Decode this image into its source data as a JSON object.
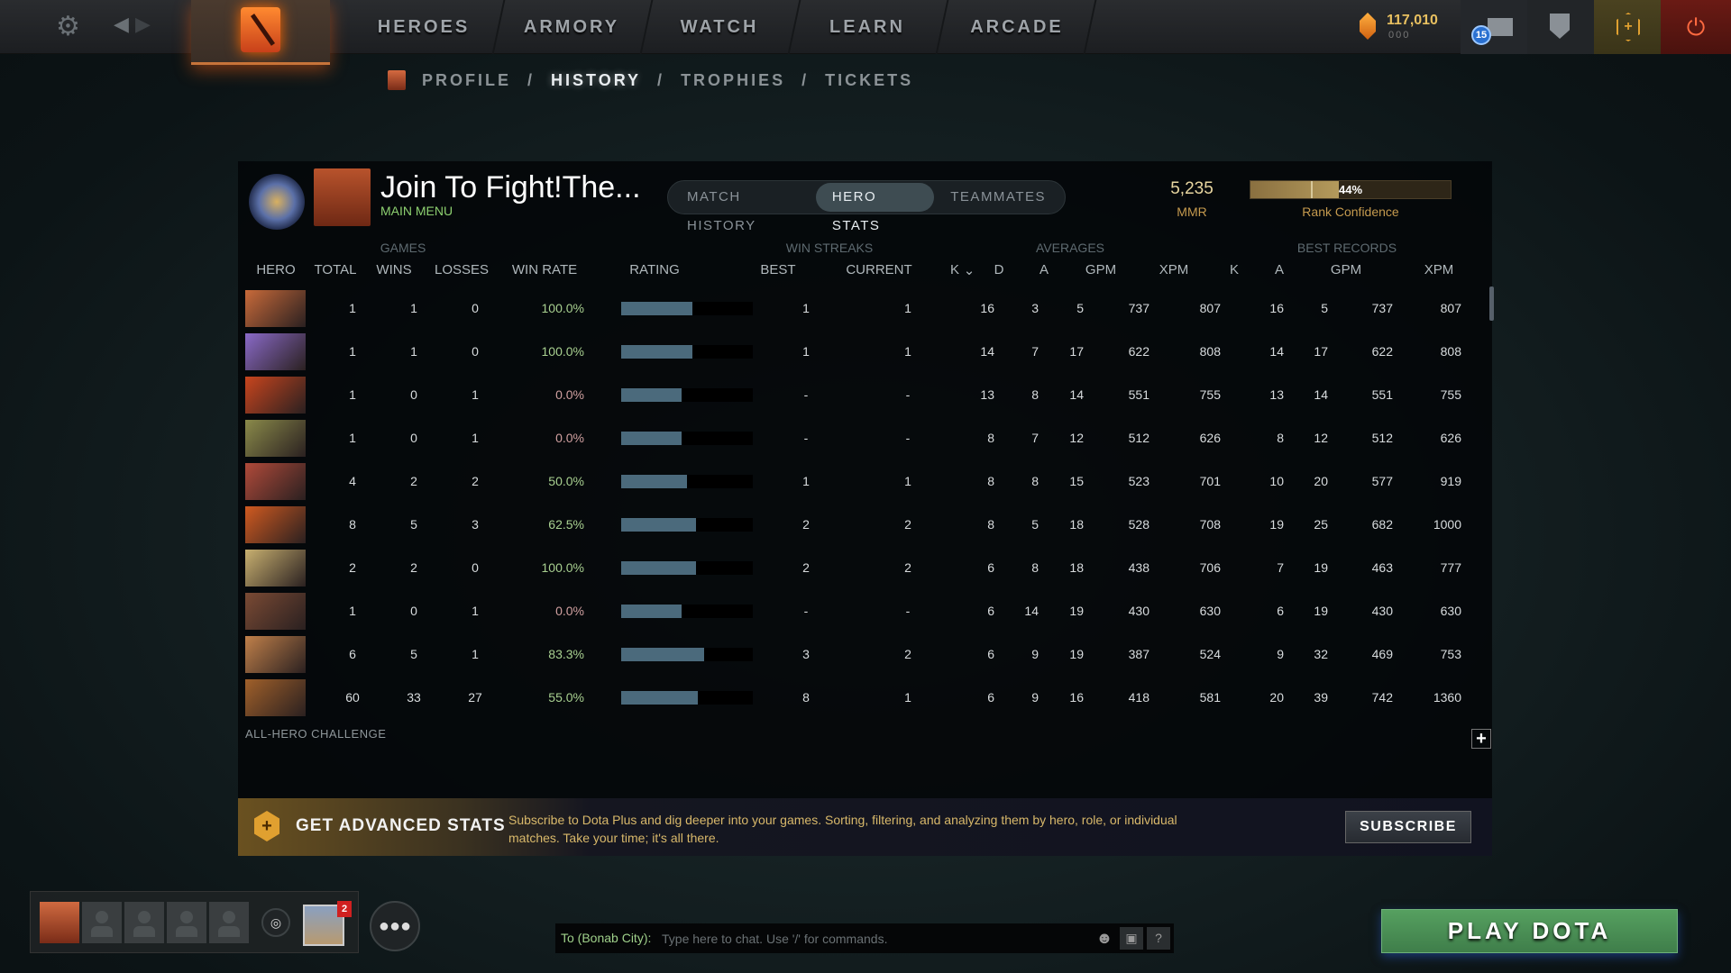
{
  "topnav": {
    "items": [
      "HEROES",
      "ARMORY",
      "WATCH",
      "LEARN",
      "ARCADE"
    ],
    "shards": "117,010",
    "shards_sub": "000",
    "notifications": "15"
  },
  "subnav": {
    "items": [
      "PROFILE",
      "HISTORY",
      "TROPHIES",
      "TICKETS"
    ],
    "separator": "/",
    "active": "HISTORY"
  },
  "profile": {
    "name": "Join To Fight!The...",
    "status": "MAIN MENU",
    "mmr": "5,235",
    "mmr_label": "MMR",
    "rank_confidence": "44%",
    "rank_confidence_value": 44,
    "rank_confidence_label": "Rank Confidence"
  },
  "tabs": [
    "MATCH HISTORY",
    "HERO STATS",
    "TEAMMATES"
  ],
  "active_tab": "HERO STATS",
  "groups": {
    "games": "GAMES",
    "win_streaks": "WIN STREAKS",
    "averages": "AVERAGES",
    "best_records": "BEST RECORDS"
  },
  "columns": [
    "HERO",
    "TOTAL",
    "WINS",
    "LOSSES",
    "WIN RATE",
    "RATING",
    "BEST",
    "CURRENT",
    "K",
    "D",
    "A",
    "GPM",
    "XPM",
    "K",
    "A",
    "GPM",
    "XPM"
  ],
  "sort_indicator": "⌄",
  "rows": [
    {
      "hero_color": "#c86a3a",
      "total": "1",
      "wins": "1",
      "losses": "0",
      "win_rate": "100.0%",
      "rating": 54,
      "best": "1",
      "current": "1",
      "k": "16",
      "d": "3",
      "a": "5",
      "gpm": "737",
      "xpm": "807",
      "bk": "16",
      "ba": "5",
      "bgpm": "737",
      "bxpm": "807"
    },
    {
      "hero_color": "#8a6ac8",
      "total": "1",
      "wins": "1",
      "losses": "0",
      "win_rate": "100.0%",
      "rating": 54,
      "best": "1",
      "current": "1",
      "k": "14",
      "d": "7",
      "a": "17",
      "gpm": "622",
      "xpm": "808",
      "bk": "14",
      "ba": "17",
      "bgpm": "622",
      "bxpm": "808"
    },
    {
      "hero_color": "#c8451e",
      "total": "1",
      "wins": "0",
      "losses": "1",
      "win_rate": "0.0%",
      "rating": 46,
      "best": "-",
      "current": "-",
      "k": "13",
      "d": "8",
      "a": "14",
      "gpm": "551",
      "xpm": "755",
      "bk": "13",
      "ba": "14",
      "bgpm": "551",
      "bxpm": "755"
    },
    {
      "hero_color": "#8a8a4a",
      "total": "1",
      "wins": "0",
      "losses": "1",
      "win_rate": "0.0%",
      "rating": 46,
      "best": "-",
      "current": "-",
      "k": "8",
      "d": "7",
      "a": "12",
      "gpm": "512",
      "xpm": "626",
      "bk": "8",
      "ba": "12",
      "bgpm": "512",
      "bxpm": "626"
    },
    {
      "hero_color": "#b04a3a",
      "total": "4",
      "wins": "2",
      "losses": "2",
      "win_rate": "50.0%",
      "rating": 50,
      "best": "1",
      "current": "1",
      "k": "8",
      "d": "8",
      "a": "15",
      "gpm": "523",
      "xpm": "701",
      "bk": "10",
      "ba": "20",
      "bgpm": "577",
      "bxpm": "919"
    },
    {
      "hero_color": "#d05a20",
      "total": "8",
      "wins": "5",
      "losses": "3",
      "win_rate": "62.5%",
      "rating": 57,
      "best": "2",
      "current": "2",
      "k": "8",
      "d": "5",
      "a": "18",
      "gpm": "528",
      "xpm": "708",
      "bk": "19",
      "ba": "25",
      "bgpm": "682",
      "bxpm": "1000"
    },
    {
      "hero_color": "#c8b070",
      "total": "2",
      "wins": "2",
      "losses": "0",
      "win_rate": "100.0%",
      "rating": 57,
      "best": "2",
      "current": "2",
      "k": "6",
      "d": "8",
      "a": "18",
      "gpm": "438",
      "xpm": "706",
      "bk": "7",
      "ba": "19",
      "bgpm": "463",
      "bxpm": "777"
    },
    {
      "hero_color": "#7a4a34",
      "total": "1",
      "wins": "0",
      "losses": "1",
      "win_rate": "0.0%",
      "rating": 46,
      "best": "-",
      "current": "-",
      "k": "6",
      "d": "14",
      "a": "19",
      "gpm": "430",
      "xpm": "630",
      "bk": "6",
      "ba": "19",
      "bgpm": "430",
      "bxpm": "630"
    },
    {
      "hero_color": "#c0804a",
      "total": "6",
      "wins": "5",
      "losses": "1",
      "win_rate": "83.3%",
      "rating": 63,
      "best": "3",
      "current": "2",
      "k": "6",
      "d": "9",
      "a": "19",
      "gpm": "387",
      "xpm": "524",
      "bk": "9",
      "ba": "32",
      "bgpm": "469",
      "bxpm": "753"
    },
    {
      "hero_color": "#a0602a",
      "total": "60",
      "wins": "33",
      "losses": "27",
      "win_rate": "55.0%",
      "rating": 58,
      "best": "8",
      "current": "1",
      "k": "6",
      "d": "9",
      "a": "16",
      "gpm": "418",
      "xpm": "581",
      "bk": "20",
      "ba": "39",
      "bgpm": "742",
      "bxpm": "1360"
    }
  ],
  "challenge": "ALL-HERO CHALLENGE",
  "banner": {
    "title": "GET ADVANCED STATS",
    "text": "Subscribe to Dota Plus and dig deeper into your games. Sorting, filtering, and analyzing them by hero, role, or individual matches. Take your time; it's all there.",
    "button": "SUBSCRIBE"
  },
  "party": {
    "badge": "2"
  },
  "chat": {
    "to": "To (Bonab City):",
    "placeholder": "Type here to chat. Use '/' for commands.",
    "help": "?"
  },
  "play_button": "PLAY DOTA",
  "colors": {
    "accent_gold": "#c59a4e",
    "win_green": "#a8d090",
    "loss_red": "#d0a0a0",
    "play_green": "#4e9258"
  }
}
